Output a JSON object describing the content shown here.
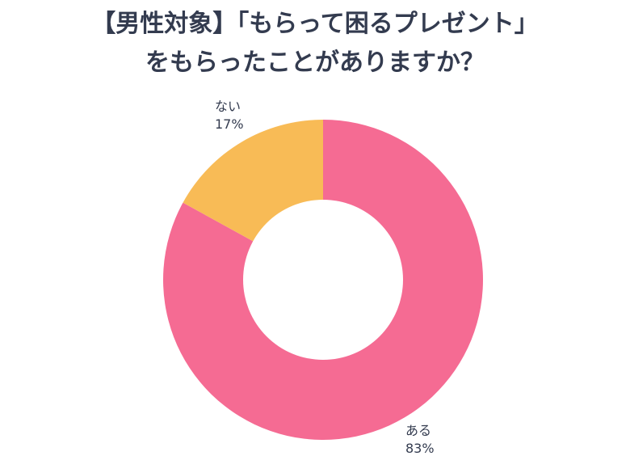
{
  "title_lines": [
    "【男性対象】「もらって困るプレゼント」",
    "をもらったことがありますか？"
  ],
  "colors": {
    "yes": "#f56b93",
    "no": "#f8bb56",
    "text": "#333b4f",
    "hole": "#ffffff"
  },
  "chart_data": {
    "type": "pie",
    "donut": true,
    "title": "【男性対象】「もらって困るプレゼント」をもらったことがありますか？",
    "slices": [
      {
        "label": "ある",
        "value": 83,
        "value_label": "83%",
        "color": "#f56b93"
      },
      {
        "label": "ない",
        "value": 17,
        "value_label": "17%",
        "color": "#f8bb56"
      }
    ],
    "start": "12 o'clock",
    "direction": "clockwise",
    "legend": "none"
  }
}
